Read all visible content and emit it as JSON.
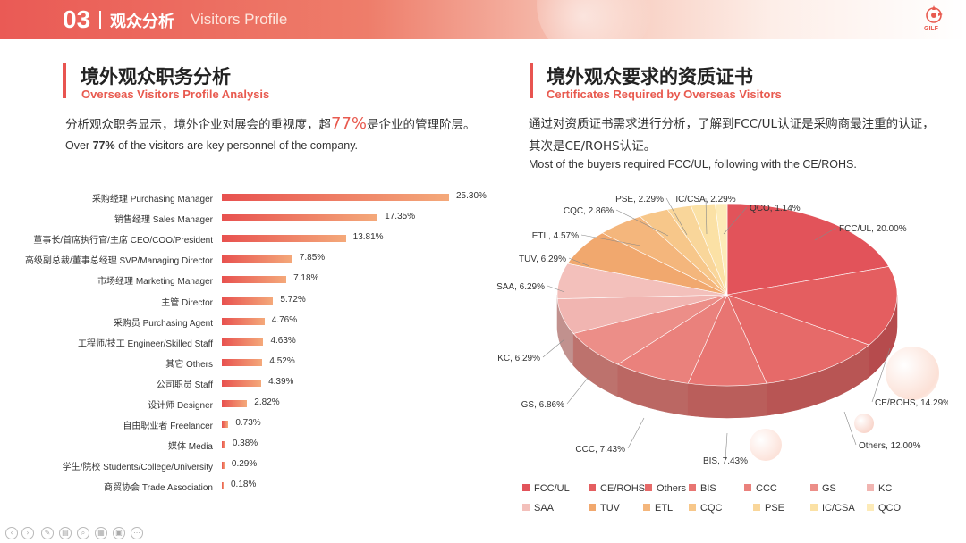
{
  "header": {
    "number": "03",
    "title_cn": "观众分析",
    "title_en": "Visitors Profile",
    "logo_text": "GILF"
  },
  "left_section": {
    "title_cn": "境外观众职务分析",
    "title_en": "Overseas Visitors Profile Analysis",
    "desc_cn_pre": "分析观众职务显示，境外企业对展会的重视度，超",
    "desc_cn_highlight": "77%",
    "desc_cn_post": "是企业的管理阶层。",
    "desc_en_pre": "Over ",
    "desc_en_bold": "77%",
    "desc_en_post": " of the visitors are key personnel of the company."
  },
  "right_section": {
    "title_cn": "境外观众要求的资质证书",
    "title_en": "Certificates Required by Overseas Visitors",
    "desc_cn_line1": "通过对资质证书需求进行分析，了解到FCC/UL认证是采购商最注重的认证，",
    "desc_cn_line2": "其次是CE/ROHS认证。",
    "desc_en": "Most of the buyers required FCC/UL, following with the CE/ROHS."
  },
  "chart_data": [
    {
      "type": "bar",
      "orientation": "horizontal",
      "categories": [
        "采购经理 Purchasing Manager",
        "销售经理 Sales Manager",
        "董事长/首席执行官/主席 CEO/COO/President",
        "高级副总裁/董事总经理 SVP/Managing Director",
        "市场经理 Marketing Manager",
        "主管 Director",
        "采购员 Purchasing Agent",
        "工程师/技工 Engineer/Skilled Staff",
        "其它 Others",
        "公司职员 Staff",
        "设计师 Designer",
        "自由职业者 Freelancer",
        "媒体 Media",
        "学生/院校 Students/College/University",
        "商贸协会 Trade Association"
      ],
      "values": [
        25.3,
        17.35,
        13.81,
        7.85,
        7.18,
        5.72,
        4.76,
        4.63,
        4.52,
        4.39,
        2.82,
        0.73,
        0.38,
        0.29,
        0.18
      ],
      "value_labels": [
        "25.30%",
        "17.35%",
        "13.81%",
        "7.85%",
        "7.18%",
        "5.72%",
        "4.76%",
        "4.63%",
        "4.52%",
        "4.39%",
        "2.82%",
        "0.73%",
        "0.38%",
        "0.29%",
        "0.18%"
      ],
      "xlim": [
        0,
        25.3
      ],
      "colors": [
        "#e8514f",
        "#f4a97a"
      ]
    },
    {
      "type": "pie",
      "style": "3d",
      "slices": [
        {
          "name": "FCC/UL",
          "value": 20.0,
          "label": "FCC/UL, 20.00%",
          "color": "#e2535a"
        },
        {
          "name": "CE/ROHS",
          "value": 14.29,
          "label": "CE/ROHS, 14.29%",
          "color": "#e45e60"
        },
        {
          "name": "Others",
          "value": 12.0,
          "label": "Others, 12.00%",
          "color": "#e66a69"
        },
        {
          "name": "BIS",
          "value": 7.43,
          "label": "BIS, 7.43%",
          "color": "#e87572"
        },
        {
          "name": "CCC",
          "value": 7.43,
          "label": "CCC, 7.43%",
          "color": "#ea817c"
        },
        {
          "name": "GS",
          "value": 6.86,
          "label": "GS, 6.86%",
          "color": "#ec8e88"
        },
        {
          "name": "KC",
          "value": 6.29,
          "label": "KC, 6.29%",
          "color": "#f1b5b1"
        },
        {
          "name": "SAA",
          "value": 6.29,
          "label": "SAA, 6.29%",
          "color": "#f3c0bb"
        },
        {
          "name": "TUV",
          "value": 6.29,
          "label": "TUV, 6.29%",
          "color": "#f1a86e"
        },
        {
          "name": "ETL",
          "value": 4.57,
          "label": "ETL, 4.57%",
          "color": "#f4b67c"
        },
        {
          "name": "CQC",
          "value": 2.86,
          "label": "CQC, 2.86%",
          "color": "#f7c78a"
        },
        {
          "name": "PSE",
          "value": 2.29,
          "label": "PSE, 2.29%",
          "color": "#f9d69a"
        },
        {
          "name": "IC/CSA",
          "value": 2.29,
          "label": "IC/CSA, 2.29%",
          "color": "#fbe1a5"
        },
        {
          "name": "QCO",
          "value": 1.14,
          "label": "QCO, 1.14%",
          "color": "#fdebb8"
        }
      ],
      "legend_placement": "bottom"
    }
  ]
}
